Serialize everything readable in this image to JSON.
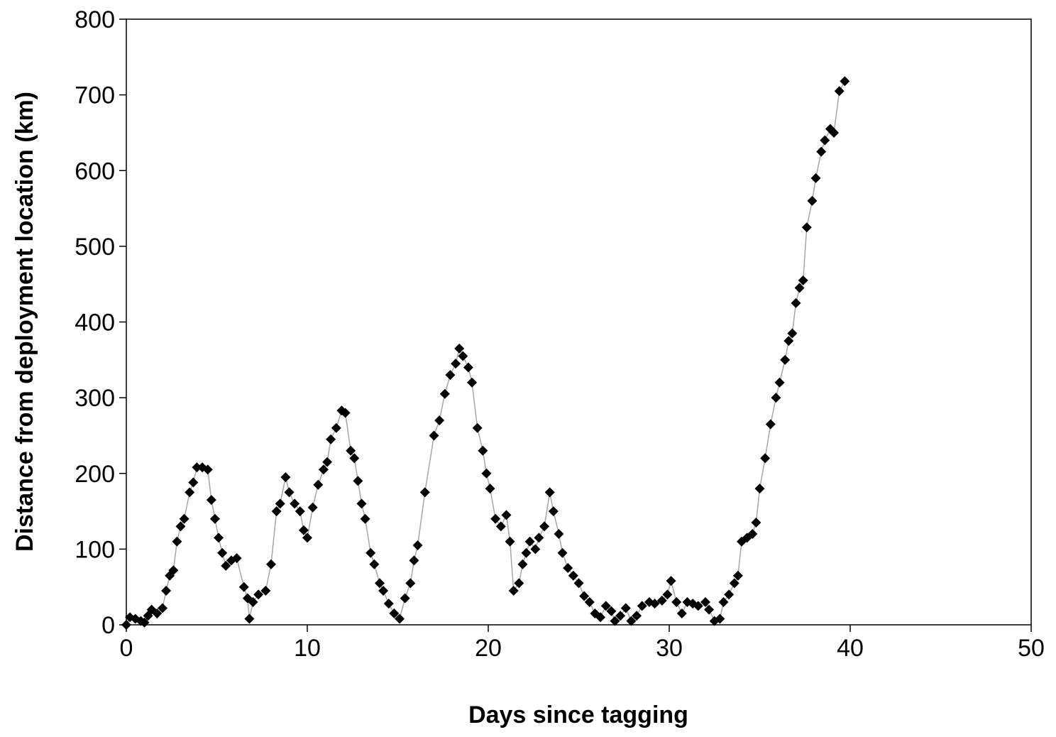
{
  "chart_data": {
    "type": "line",
    "x_label": "Days since tagging",
    "y_label": "Distance from deployment location (km)",
    "x": [
      0,
      0.2,
      0.5,
      0.8,
      1.0,
      1.2,
      1.4,
      1.7,
      2.0,
      2.2,
      2.4,
      2.6,
      2.8,
      3.0,
      3.2,
      3.5,
      3.7,
      3.9,
      4.2,
      4.5,
      4.7,
      4.9,
      5.1,
      5.3,
      5.5,
      5.8,
      6.1,
      6.5,
      6.7,
      6.8,
      7.0,
      7.3,
      7.7,
      8.0,
      8.3,
      8.5,
      8.8,
      9.0,
      9.3,
      9.6,
      9.8,
      10.0,
      10.3,
      10.6,
      10.9,
      11.1,
      11.3,
      11.6,
      11.9,
      12.1,
      12.4,
      12.6,
      12.8,
      13.0,
      13.2,
      13.5,
      13.7,
      14.0,
      14.2,
      14.5,
      14.8,
      15.1,
      15.4,
      15.7,
      15.9,
      16.1,
      16.5,
      17.0,
      17.3,
      17.6,
      17.9,
      18.2,
      18.4,
      18.6,
      18.9,
      19.1,
      19.4,
      19.7,
      19.9,
      20.1,
      20.4,
      20.7,
      21.0,
      21.2,
      21.4,
      21.7,
      21.9,
      22.1,
      22.3,
      22.6,
      22.8,
      23.1,
      23.4,
      23.6,
      23.9,
      24.1,
      24.4,
      24.7,
      25.0,
      25.3,
      25.6,
      25.9,
      26.2,
      26.5,
      26.8,
      27.0,
      27.3,
      27.6,
      27.9,
      28.2,
      28.5,
      28.9,
      29.2,
      29.6,
      29.9,
      30.1,
      30.4,
      30.7,
      31.0,
      31.3,
      31.6,
      32.0,
      32.2,
      32.5,
      32.8,
      33.0,
      33.3,
      33.6,
      33.8,
      34.0,
      34.3,
      34.6,
      34.8,
      35.0,
      35.3,
      35.6,
      35.9,
      36.1,
      36.4,
      36.6,
      36.8,
      37.0,
      37.2,
      37.4,
      37.6,
      37.9,
      38.1,
      38.4,
      38.6,
      38.9,
      39.1,
      39.4,
      39.7
    ],
    "series": [
      {
        "color": "#000000",
        "line_color": "#a6a6a6",
        "values": [
          0,
          10,
          8,
          5,
          3,
          12,
          20,
          15,
          22,
          45,
          65,
          72,
          110,
          130,
          140,
          175,
          188,
          208,
          208,
          205,
          165,
          140,
          115,
          95,
          78,
          85,
          88,
          50,
          35,
          8,
          30,
          40,
          45,
          80,
          150,
          160,
          195,
          175,
          160,
          150,
          125,
          115,
          155,
          185,
          205,
          215,
          245,
          260,
          283,
          280,
          230,
          220,
          190,
          160,
          140,
          95,
          80,
          55,
          45,
          28,
          15,
          8,
          35,
          55,
          85,
          105,
          175,
          250,
          270,
          305,
          330,
          345,
          365,
          355,
          340,
          320,
          260,
          230,
          200,
          180,
          140,
          130,
          145,
          110,
          45,
          55,
          80,
          95,
          110,
          100,
          115,
          130,
          175,
          150,
          120,
          95,
          75,
          65,
          55,
          38,
          30,
          15,
          10,
          25,
          18,
          5,
          12,
          22,
          5,
          12,
          25,
          30,
          28,
          32,
          40,
          58,
          30,
          15,
          30,
          28,
          25,
          30,
          20,
          5,
          8,
          30,
          40,
          55,
          65,
          110,
          115,
          120,
          135,
          180,
          220,
          265,
          300,
          320,
          350,
          375,
          385,
          425,
          445,
          455,
          525,
          560,
          590,
          625,
          640,
          655,
          650,
          705,
          718
        ]
      }
    ],
    "xlim": [
      0,
      50
    ],
    "xticks": [
      0,
      10,
      20,
      30,
      40,
      50
    ],
    "ylim": [
      0,
      800
    ],
    "yticks": [
      0,
      100,
      200,
      300,
      400,
      500,
      600,
      700,
      800
    ]
  }
}
